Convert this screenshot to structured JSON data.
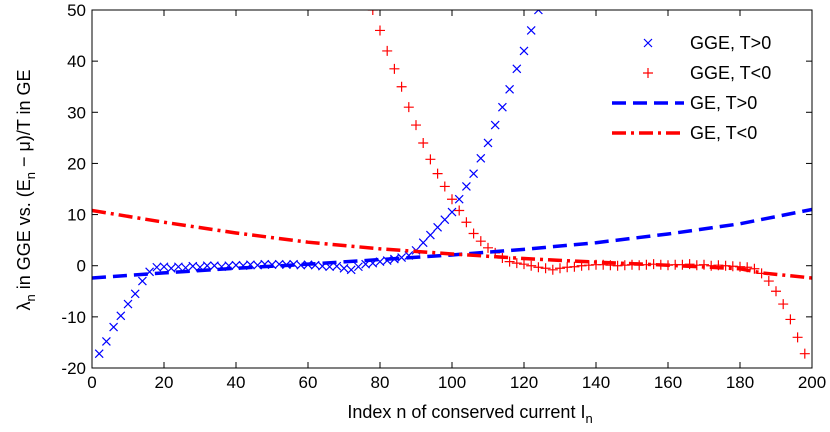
{
  "chart_data": {
    "type": "scatter",
    "xlabel": "Index n of conserved current I",
    "xlabel_sub": "n",
    "ylabel_parts": {
      "a": "λ",
      "a_sub": "n",
      "b": " in GGE    vs.    (E",
      "b_sub": "n",
      "c": " − μ)/T in GE"
    },
    "xlim": [
      0,
      200
    ],
    "ylim": [
      -20,
      50
    ],
    "xticks": [
      0,
      20,
      40,
      60,
      80,
      100,
      120,
      140,
      160,
      180,
      200
    ],
    "yticks": [
      -20,
      -10,
      0,
      10,
      20,
      30,
      40,
      50
    ],
    "grid": false,
    "legend_position": "top-right",
    "series": [
      {
        "name": "GGE, T>0",
        "marker": "x",
        "color": "#0000ff",
        "points": [
          [
            2,
            -17.2
          ],
          [
            4,
            -14.8
          ],
          [
            6,
            -12
          ],
          [
            8,
            -9.8
          ],
          [
            10,
            -7.5
          ],
          [
            12,
            -5.5
          ],
          [
            14,
            -3
          ],
          [
            16,
            -1.2
          ],
          [
            18,
            -0.3
          ],
          [
            20,
            -0.2
          ],
          [
            22,
            -0.5
          ],
          [
            24,
            -0.2
          ],
          [
            26,
            -0.4
          ],
          [
            28,
            -0.1
          ],
          [
            30,
            -0.3
          ],
          [
            32,
            0
          ],
          [
            34,
            0
          ],
          [
            36,
            -0.2
          ],
          [
            38,
            0
          ],
          [
            40,
            0.1
          ],
          [
            42,
            0
          ],
          [
            44,
            0.2
          ],
          [
            46,
            0.1
          ],
          [
            48,
            0.3
          ],
          [
            50,
            0.2
          ],
          [
            52,
            0.3
          ],
          [
            54,
            0.2
          ],
          [
            56,
            0.3
          ],
          [
            58,
            0.1
          ],
          [
            60,
            0.2
          ],
          [
            62,
            0.1
          ],
          [
            64,
            -0.1
          ],
          [
            66,
            -0.2
          ],
          [
            68,
            -0.1
          ],
          [
            70,
            -0.5
          ],
          [
            72,
            -0.8
          ],
          [
            74,
            -0.2
          ],
          [
            76,
            0.3
          ],
          [
            78,
            0.5
          ],
          [
            80,
            0.8
          ],
          [
            82,
            1
          ],
          [
            84,
            1.3
          ],
          [
            86,
            1.6
          ],
          [
            88,
            2
          ],
          [
            90,
            3
          ],
          [
            92,
            4.5
          ],
          [
            94,
            6
          ],
          [
            96,
            7.5
          ],
          [
            98,
            9
          ],
          [
            100,
            10.5
          ],
          [
            102,
            13
          ],
          [
            104,
            15.5
          ],
          [
            106,
            18
          ],
          [
            108,
            21
          ],
          [
            110,
            24
          ],
          [
            112,
            27.5
          ],
          [
            114,
            31
          ],
          [
            116,
            34.5
          ],
          [
            118,
            38.5
          ],
          [
            120,
            42
          ],
          [
            122,
            46
          ],
          [
            124,
            50
          ]
        ]
      },
      {
        "name": "GGE, T<0",
        "marker": "+",
        "color": "#ff0000",
        "points": [
          [
            78,
            50
          ],
          [
            80,
            46
          ],
          [
            82,
            42
          ],
          [
            84,
            38.5
          ],
          [
            86,
            35
          ],
          [
            88,
            31
          ],
          [
            90,
            27.5
          ],
          [
            92,
            24
          ],
          [
            94,
            20.8
          ],
          [
            96,
            18
          ],
          [
            98,
            15.5
          ],
          [
            100,
            13
          ],
          [
            102,
            10.8
          ],
          [
            104,
            8.5
          ],
          [
            106,
            6.3
          ],
          [
            108,
            4.8
          ],
          [
            110,
            3.5
          ],
          [
            112,
            2.5
          ],
          [
            114,
            1.5
          ],
          [
            116,
            0.8
          ],
          [
            118,
            0.5
          ],
          [
            120,
            0.3
          ],
          [
            122,
            0
          ],
          [
            124,
            -0.3
          ],
          [
            126,
            -0.5
          ],
          [
            128,
            -0.8
          ],
          [
            130,
            -0.5
          ],
          [
            132,
            -0.3
          ],
          [
            134,
            -0.2
          ],
          [
            136,
            0
          ],
          [
            138,
            0.1
          ],
          [
            140,
            0.2
          ],
          [
            142,
            0.2
          ],
          [
            144,
            0.1
          ],
          [
            146,
            0
          ],
          [
            148,
            0.1
          ],
          [
            150,
            0.2
          ],
          [
            152,
            0.1
          ],
          [
            154,
            0.2
          ],
          [
            156,
            0.3
          ],
          [
            158,
            0.2
          ],
          [
            160,
            0.1
          ],
          [
            162,
            0.2
          ],
          [
            164,
            0.2
          ],
          [
            166,
            0.3
          ],
          [
            168,
            0.1
          ],
          [
            170,
            0.2
          ],
          [
            172,
            0
          ],
          [
            174,
            0.1
          ],
          [
            176,
            0
          ],
          [
            178,
            -0.1
          ],
          [
            180,
            -0.2
          ],
          [
            182,
            -0.3
          ],
          [
            184,
            -0.6
          ],
          [
            186,
            -1.5
          ],
          [
            188,
            -3
          ],
          [
            190,
            -5
          ],
          [
            192,
            -7.5
          ],
          [
            194,
            -10.5
          ],
          [
            196,
            -14
          ],
          [
            198,
            -17.2
          ]
        ]
      },
      {
        "name": "GE, T>0",
        "line": "dashed",
        "color": "#0000ff",
        "points": [
          [
            0,
            -2.4
          ],
          [
            20,
            -1.4
          ],
          [
            40,
            -0.5
          ],
          [
            60,
            0.3
          ],
          [
            80,
            1.2
          ],
          [
            100,
            2.1
          ],
          [
            120,
            3.2
          ],
          [
            140,
            4.5
          ],
          [
            160,
            6.2
          ],
          [
            180,
            8.2
          ],
          [
            200,
            11
          ]
        ]
      },
      {
        "name": "GE, T<0",
        "line": "dashdot",
        "color": "#ff0000",
        "points": [
          [
            0,
            10.8
          ],
          [
            20,
            8.5
          ],
          [
            40,
            6.4
          ],
          [
            60,
            4.6
          ],
          [
            80,
            3.3
          ],
          [
            100,
            2.3
          ],
          [
            120,
            1.4
          ],
          [
            140,
            0.7
          ],
          [
            160,
            0.1
          ],
          [
            180,
            -0.6
          ],
          [
            186,
            -1.4
          ],
          [
            200,
            -2.4
          ]
        ]
      }
    ]
  }
}
